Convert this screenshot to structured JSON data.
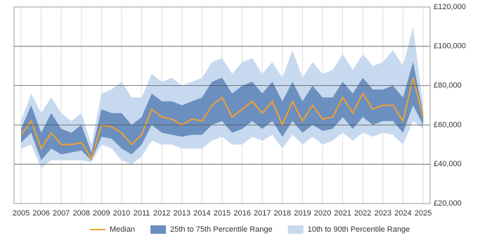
{
  "chart_data": {
    "type": "range-line",
    "x": [
      2005,
      2005.5,
      2006,
      2006.5,
      2007,
      2007.5,
      2008,
      2008.5,
      2009,
      2009.5,
      2010,
      2010.5,
      2011,
      2011.5,
      2012,
      2012.5,
      2013,
      2013.5,
      2014,
      2014.5,
      2015,
      2015.5,
      2016,
      2016.5,
      2017,
      2017.5,
      2018,
      2018.5,
      2019,
      2019.5,
      2020,
      2020.5,
      2021,
      2021.5,
      2022,
      2022.5,
      2023,
      2023.5,
      2024,
      2024.5,
      2025
    ],
    "series": [
      {
        "name": "Median",
        "color": "#f0a030",
        "values": [
          55000,
          62000,
          48000,
          56000,
          50000,
          50000,
          51000,
          43000,
          60000,
          59000,
          56000,
          50000,
          55000,
          68000,
          64000,
          63000,
          60000,
          63000,
          62000,
          70000,
          74000,
          64000,
          68000,
          72000,
          66000,
          72000,
          60000,
          72000,
          62000,
          70000,
          63000,
          64000,
          74000,
          66000,
          76000,
          68000,
          70000,
          70000,
          62000,
          84000,
          64000
        ]
      },
      {
        "name": "25th to 75th Percentile Range",
        "color": "#6b8fbf",
        "lower": [
          51000,
          56000,
          42000,
          48000,
          45000,
          46000,
          47000,
          42000,
          54000,
          53000,
          48000,
          45000,
          50000,
          60000,
          56000,
          55000,
          54000,
          55000,
          55000,
          60000,
          62000,
          56000,
          58000,
          62000,
          58000,
          62000,
          54000,
          62000,
          56000,
          60000,
          57000,
          58000,
          64000,
          58000,
          64000,
          60000,
          62000,
          62000,
          56000,
          70000,
          60000
        ],
        "upper": [
          58000,
          70000,
          56000,
          66000,
          58000,
          56000,
          60000,
          46000,
          68000,
          66000,
          66000,
          60000,
          64000,
          76000,
          72000,
          72000,
          70000,
          72000,
          74000,
          82000,
          84000,
          76000,
          80000,
          82000,
          76000,
          82000,
          72000,
          82000,
          72000,
          80000,
          74000,
          74000,
          82000,
          76000,
          84000,
          78000,
          78000,
          80000,
          74000,
          92000,
          66000
        ]
      },
      {
        "name": "10th to 90th Percentile Range",
        "color": "#c7d9ee",
        "lower": [
          48000,
          50000,
          38000,
          42000,
          42000,
          42000,
          42000,
          41000,
          50000,
          48000,
          42000,
          40000,
          44000,
          52000,
          50000,
          50000,
          48000,
          48000,
          48000,
          52000,
          54000,
          50000,
          50000,
          54000,
          52000,
          55000,
          48000,
          55000,
          50000,
          54000,
          50000,
          52000,
          56000,
          52000,
          56000,
          54000,
          56000,
          55000,
          50000,
          62000,
          58000
        ],
        "upper": [
          62000,
          76000,
          66000,
          74000,
          66000,
          62000,
          66000,
          50000,
          76000,
          78000,
          82000,
          74000,
          74000,
          86000,
          82000,
          84000,
          80000,
          82000,
          84000,
          92000,
          94000,
          86000,
          92000,
          94000,
          86000,
          92000,
          84000,
          98000,
          84000,
          92000,
          86000,
          88000,
          96000,
          88000,
          96000,
          90000,
          92000,
          98000,
          90000,
          110000,
          70000
        ]
      }
    ],
    "xlim": [
      2004.65,
      2025.35
    ],
    "xticks": [
      2005,
      2006,
      2007,
      2008,
      2009,
      2010,
      2011,
      2012,
      2013,
      2014,
      2015,
      2016,
      2017,
      2018,
      2019,
      2020,
      2021,
      2022,
      2023,
      2024,
      2025
    ],
    "ylim": [
      20000,
      120000
    ],
    "yticks": [
      {
        "value": 20000,
        "label": "£20,000"
      },
      {
        "value": 40000,
        "label": "£40,000"
      },
      {
        "value": 60000,
        "label": "£60,000"
      },
      {
        "value": 80000,
        "label": "£80,000"
      },
      {
        "value": 100000,
        "label": "£100,000"
      },
      {
        "value": 120000,
        "label": "£120,000"
      }
    ],
    "grid": true,
    "legend": "bottom"
  }
}
